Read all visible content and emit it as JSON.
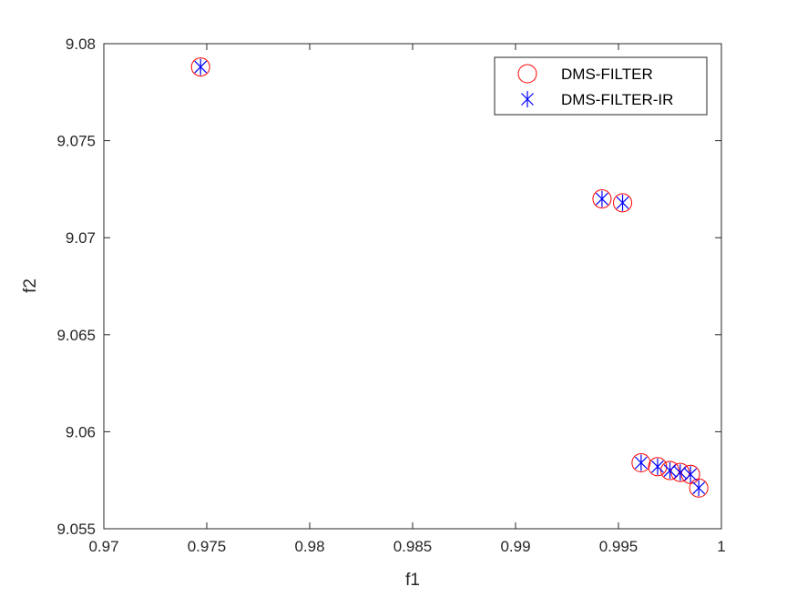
{
  "chart_data": {
    "type": "scatter",
    "title": "",
    "xlabel": "f1",
    "ylabel": "f2",
    "xlim": [
      0.97,
      1
    ],
    "ylim": [
      9.055,
      9.08
    ],
    "xticks": [
      0.97,
      0.975,
      0.98,
      0.985,
      0.99,
      0.995,
      1
    ],
    "xtick_labels": [
      "0.97",
      "0.975",
      "0.98",
      "0.985",
      "0.99",
      "0.995",
      "1"
    ],
    "yticks": [
      9.055,
      9.06,
      9.065,
      9.07,
      9.075,
      9.08
    ],
    "ytick_labels": [
      "9.055",
      "9.06",
      "9.065",
      "9.07",
      "9.075",
      "9.08"
    ],
    "grid": false,
    "legend_position": "top-right",
    "series": [
      {
        "name": "DMS-FILTER",
        "marker": "circle",
        "color": "#ff0000",
        "points": [
          [
            0.9747,
            9.0788
          ],
          [
            0.9942,
            9.072
          ],
          [
            0.9952,
            9.0718
          ],
          [
            0.9961,
            9.0584
          ],
          [
            0.9969,
            9.0582
          ],
          [
            0.9975,
            9.058
          ],
          [
            0.998,
            9.0579
          ],
          [
            0.9985,
            9.0578
          ],
          [
            0.9989,
            9.0571
          ]
        ]
      },
      {
        "name": "DMS-FILTER-IR",
        "marker": "asterisk",
        "color": "#0000ff",
        "points": [
          [
            0.9747,
            9.0788
          ],
          [
            0.9942,
            9.072
          ],
          [
            0.9952,
            9.0718
          ],
          [
            0.9961,
            9.0584
          ],
          [
            0.9969,
            9.0582
          ],
          [
            0.9975,
            9.058
          ],
          [
            0.998,
            9.0579
          ],
          [
            0.9985,
            9.0578
          ],
          [
            0.9989,
            9.0571
          ]
        ]
      }
    ]
  }
}
